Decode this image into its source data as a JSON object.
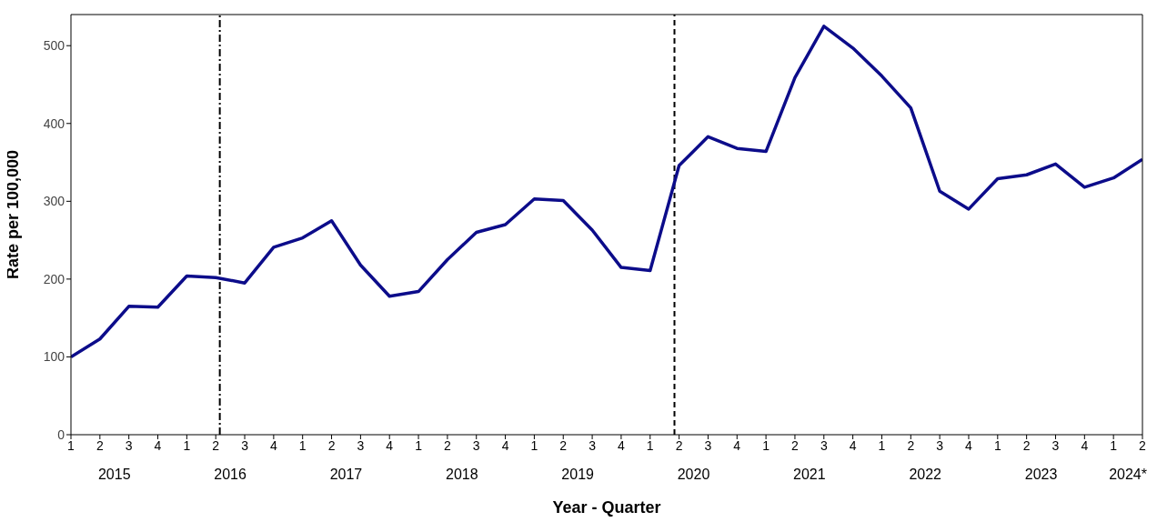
{
  "chart_data": {
    "type": "line",
    "xlabel": "Year - Quarter",
    "ylabel": "Rate per 100,000",
    "categories": [
      "1",
      "2",
      "3",
      "4",
      "1",
      "2",
      "3",
      "4",
      "1",
      "2",
      "3",
      "4",
      "1",
      "2",
      "3",
      "4",
      "1",
      "2",
      "3",
      "4",
      "1",
      "2",
      "3",
      "4",
      "1",
      "2",
      "3",
      "4",
      "1",
      "2",
      "3",
      "4",
      "1",
      "2",
      "3",
      "4",
      "1",
      "2"
    ],
    "series": [
      {
        "color": "#0c0c8a",
        "values": [
          100,
          123,
          165,
          164,
          204,
          202,
          195,
          241,
          253,
          275,
          218,
          178,
          184,
          225,
          260,
          270,
          303,
          301,
          263,
          215,
          211,
          346,
          383,
          368,
          364,
          459,
          525,
          497,
          461,
          420,
          313,
          290,
          329,
          334,
          348,
          318,
          330,
          354
        ]
      }
    ],
    "ylim": [
      0,
      540
    ],
    "yticks": [
      0,
      100,
      200,
      300,
      400,
      500
    ],
    "annotations": [
      "2015",
      "2016",
      "2017",
      "2018",
      "2019",
      "2020",
      "2021",
      "2022",
      "2023",
      "2024*"
    ],
    "legend": false,
    "marker": "none",
    "line_style": "solid"
  }
}
